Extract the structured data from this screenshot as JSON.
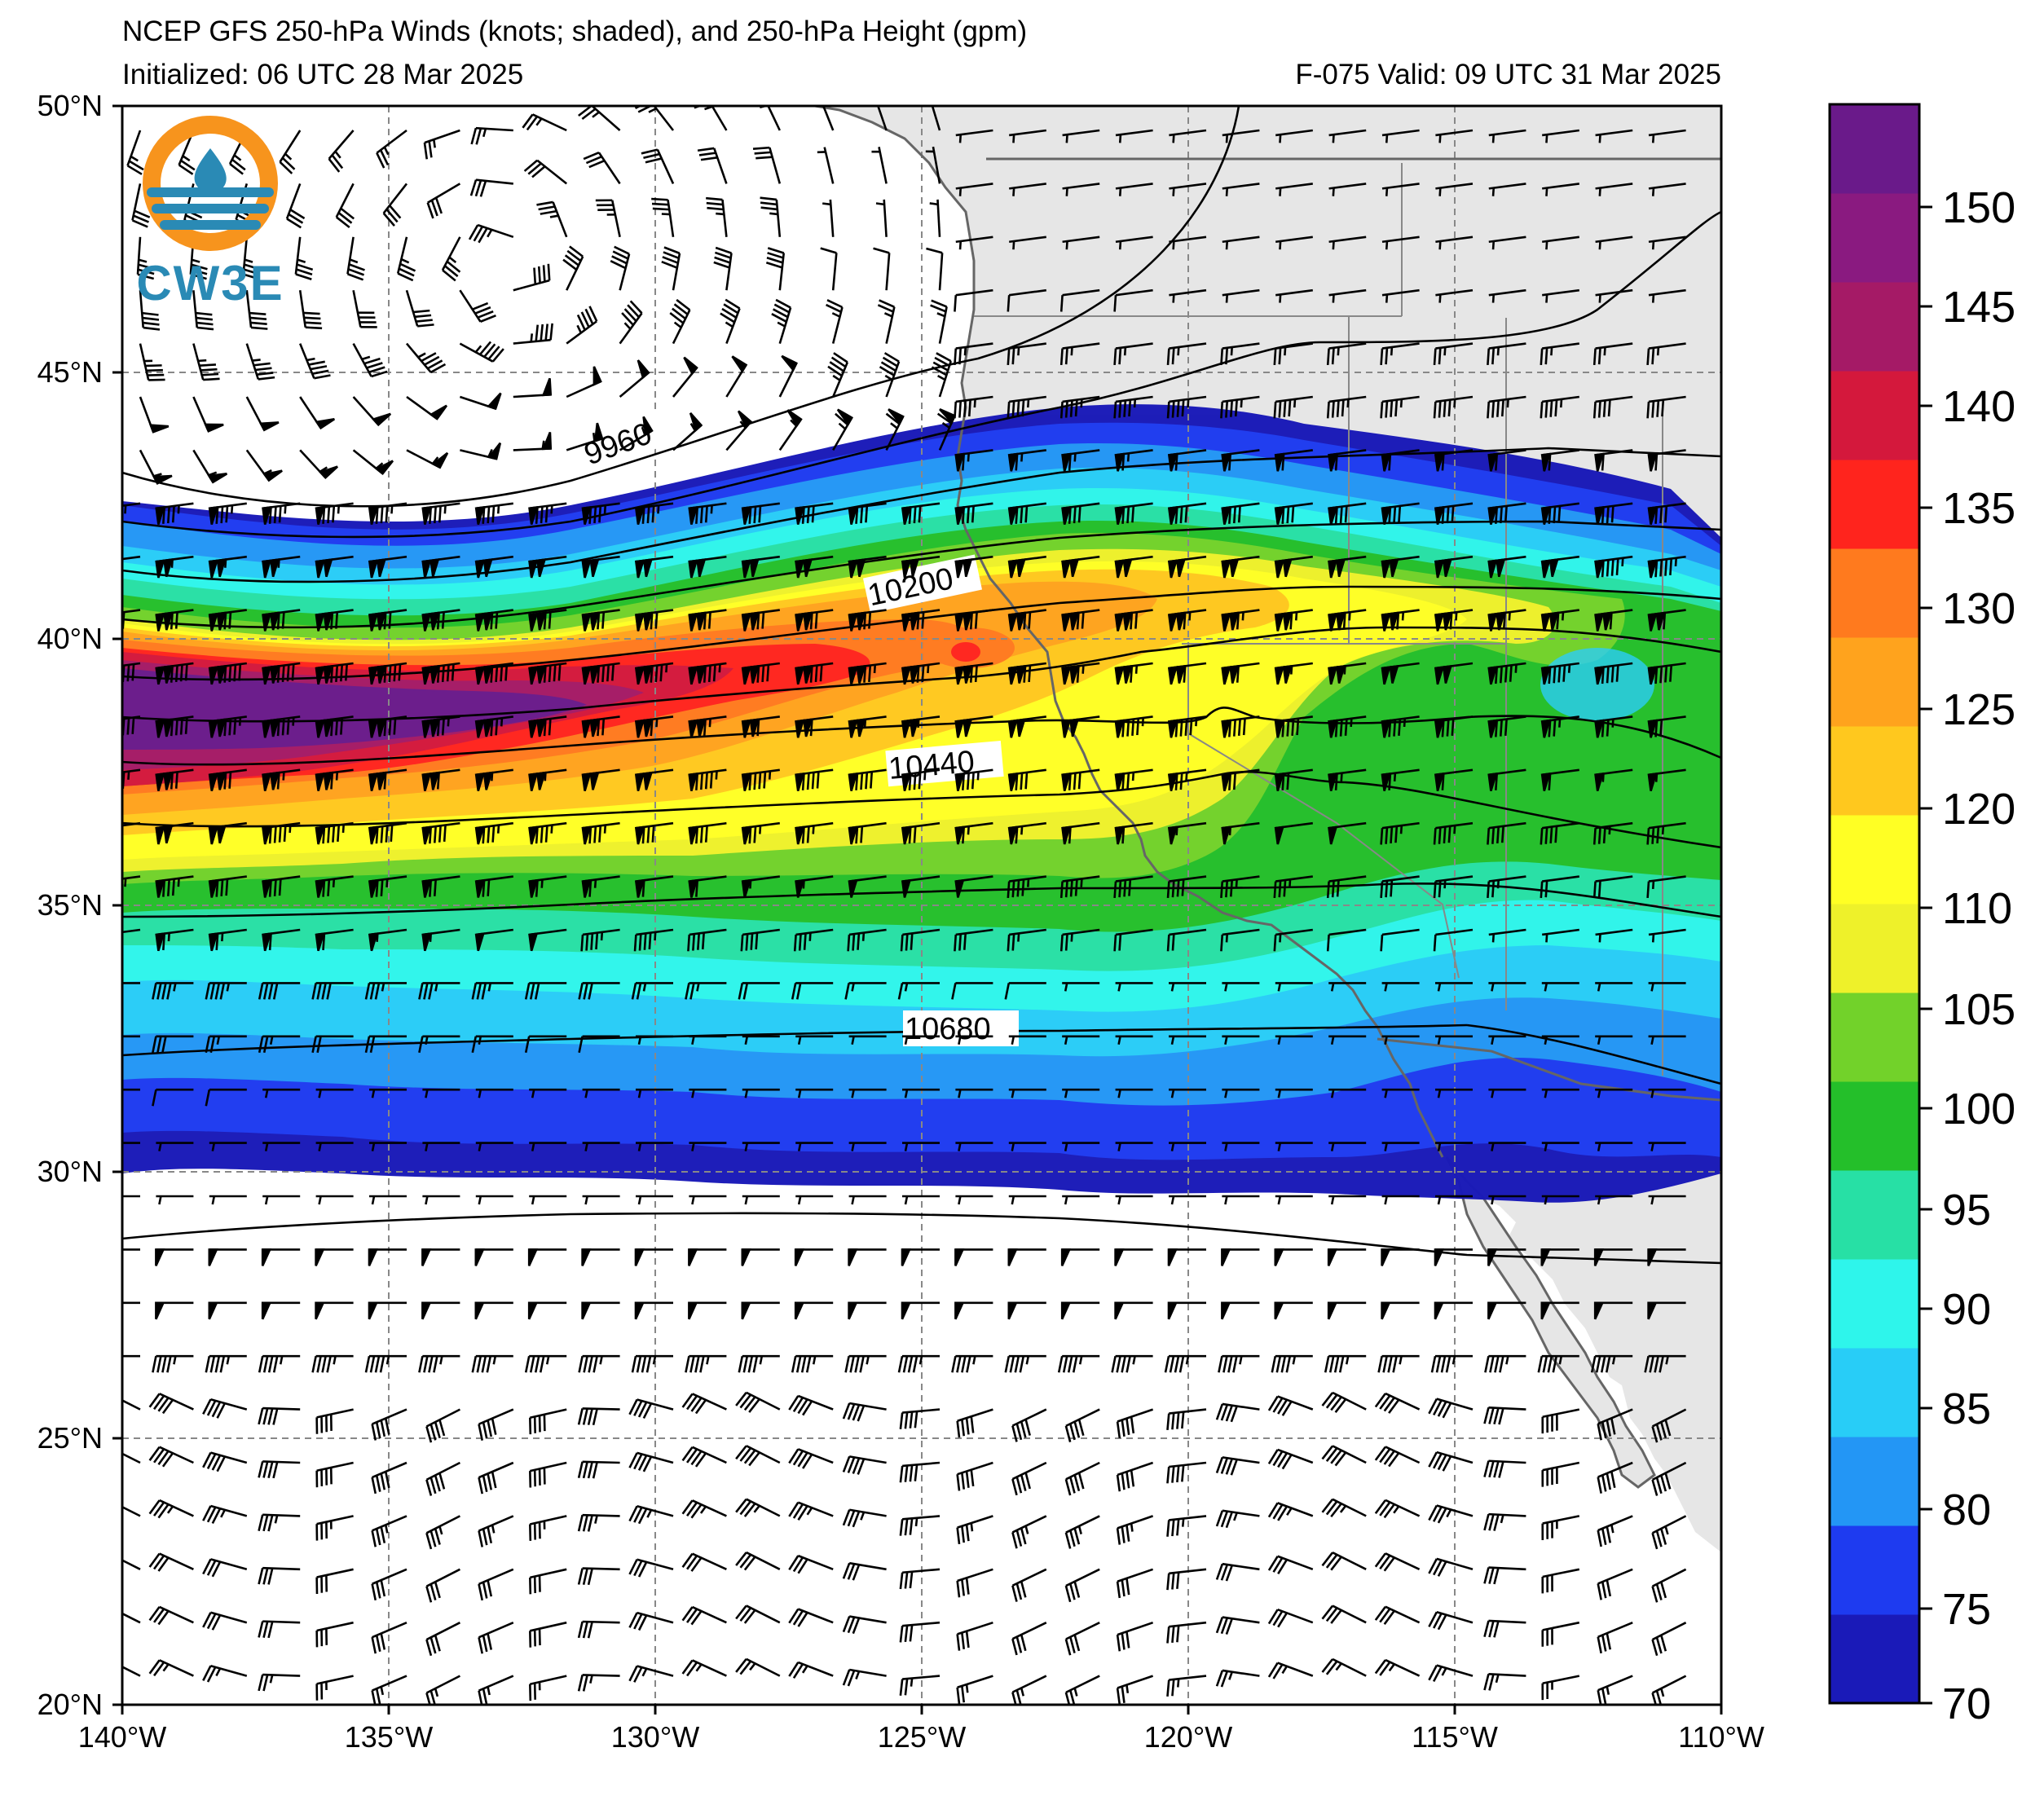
{
  "header": {
    "title": "NCEP GFS 250-hPa Winds (knots; shaded), and 250-hPa Height (gpm)",
    "initialized": "Initialized: 06 UTC 28 Mar 2025",
    "valid": "F-075  Valid: 09 UTC 31 Mar 2025"
  },
  "logo": {
    "text": "CW3E",
    "ring_color": "#F7941D",
    "wave_color": "#2A8AB5"
  },
  "map": {
    "lon_ticks": [
      "140°W",
      "135°W",
      "130°W",
      "125°W",
      "120°W",
      "115°W",
      "110°W"
    ],
    "lat_ticks": [
      "50°N",
      "45°N",
      "40°N",
      "35°N",
      "30°N",
      "25°N",
      "20°N"
    ],
    "lon_range": [
      -140,
      -110
    ],
    "lat_range": [
      20,
      50
    ],
    "land_color": "#E6E6E6",
    "ocean_color": "#FFFFFF",
    "contour_labels": [
      "9960",
      "10200",
      "10440",
      "10680"
    ]
  },
  "colorbar": {
    "ticks": [
      "150",
      "145",
      "140",
      "135",
      "130",
      "125",
      "120",
      "110",
      "105",
      "100",
      "95",
      "90",
      "85",
      "80",
      "75",
      "70"
    ],
    "colors": [
      "#1A1AB8",
      "#1E3BF0",
      "#2396F5",
      "#28CDF7",
      "#2EF5EB",
      "#27E0A5",
      "#24BF2A",
      "#72D22A",
      "#EEF12A",
      "#FFFF24",
      "#FFC81E",
      "#FFA31D",
      "#FF7A1E",
      "#FF241D",
      "#D4183C",
      "#A51A66",
      "#8A1A80",
      "#6A1A8A"
    ]
  }
}
